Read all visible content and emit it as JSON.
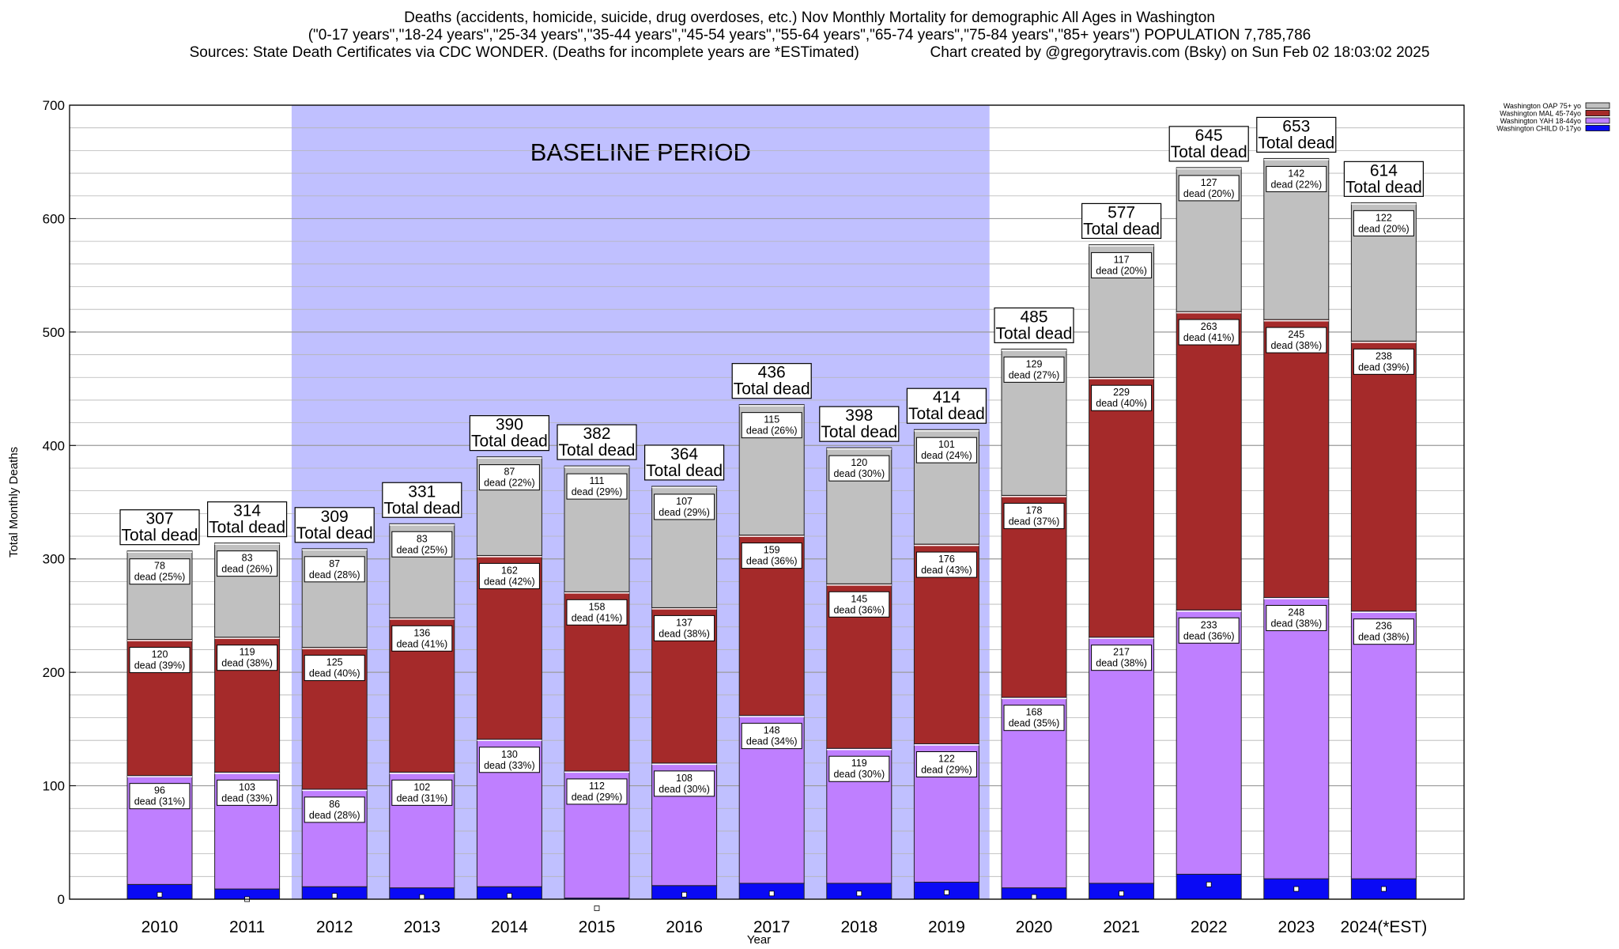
{
  "header": {
    "line1": "Deaths (accidents, homicide, suicide, drug overdoses, etc.) Nov Monthly Mortality for demographic All Ages in Washington",
    "line2": "(\"0-17 years\",\"18-24 years\",\"25-34 years\",\"35-44 years\",\"45-54 years\",\"55-64 years\",\"65-74 years\",\"75-84 years\",\"85+ years\") POPULATION 7,785,786",
    "line3": "Sources: State Death Certificates via CDC WONDER. (Deaths for incomplete years are *ESTimated)                 Chart created by @gregorytravis.com (Bsky) on Sun Feb 02 18:03:02 2025"
  },
  "colors": {
    "child": "#0a0af5",
    "yah": "#bf7fff",
    "mal": "#a52a2a",
    "oap": "#c0c0c0",
    "baseline": "#c0c0ff"
  },
  "chart_data": {
    "type": "bar",
    "stacked": true,
    "title": "Deaths (accidents, homicide, suicide, drug overdoses, etc.) Nov Monthly Mortality for demographic All Ages in Washington",
    "xlabel": "Year",
    "ylabel": "Total Monthly Deaths",
    "ylim": [
      0,
      700
    ],
    "yticks": [
      0,
      100,
      200,
      300,
      400,
      500,
      600,
      700
    ],
    "grid": true,
    "legend_position": "top-right",
    "baseline_label": "BASELINE PERIOD",
    "baseline_range": [
      "2012",
      "2019"
    ],
    "total_suffix": "Total dead",
    "segment_suffix": "dead",
    "categories": [
      "2010",
      "2011",
      "2012",
      "2013",
      "2014",
      "2015",
      "2016",
      "2017",
      "2018",
      "2019",
      "2020",
      "2021",
      "2022",
      "2023",
      "2024(*EST)"
    ],
    "totals": [
      307,
      314,
      309,
      331,
      390,
      382,
      364,
      436,
      398,
      414,
      485,
      577,
      645,
      653,
      614
    ],
    "series": [
      {
        "name": "Washington CHILD 0-17yo",
        "key": "child",
        "values": [
          13,
          9,
          11,
          10,
          11,
          1,
          12,
          14,
          14,
          15,
          10,
          14,
          22,
          18,
          18
        ],
        "child_marker": [
          4,
          0,
          3,
          2,
          3,
          -8,
          4,
          5,
          5,
          6,
          2,
          5,
          13,
          9,
          9
        ]
      },
      {
        "name": "Washington YAH 18-44yo",
        "key": "yah",
        "values": [
          96,
          103,
          86,
          102,
          130,
          112,
          108,
          148,
          119,
          122,
          168,
          217,
          233,
          248,
          236
        ],
        "pct": [
          "31%",
          "33%",
          "28%",
          "31%",
          "33%",
          "29%",
          "30%",
          "34%",
          "30%",
          "29%",
          "35%",
          "38%",
          "36%",
          "38%",
          "38%"
        ]
      },
      {
        "name": "Washington MAL 45-74yo",
        "key": "mal",
        "values": [
          120,
          119,
          125,
          136,
          162,
          158,
          137,
          159,
          145,
          176,
          178,
          229,
          263,
          245,
          238
        ],
        "pct": [
          "39%",
          "38%",
          "40%",
          "41%",
          "42%",
          "41%",
          "38%",
          "36%",
          "36%",
          "43%",
          "37%",
          "40%",
          "41%",
          "38%",
          "39%"
        ]
      },
      {
        "name": "Washington OAP 75+ yo",
        "key": "oap",
        "values": [
          78,
          83,
          87,
          83,
          87,
          111,
          107,
          115,
          120,
          101,
          129,
          117,
          127,
          142,
          122
        ],
        "pct": [
          "25%",
          "26%",
          "28%",
          "25%",
          "22%",
          "29%",
          "29%",
          "26%",
          "30%",
          "24%",
          "27%",
          "20%",
          "20%",
          "22%",
          "20%"
        ]
      }
    ]
  }
}
